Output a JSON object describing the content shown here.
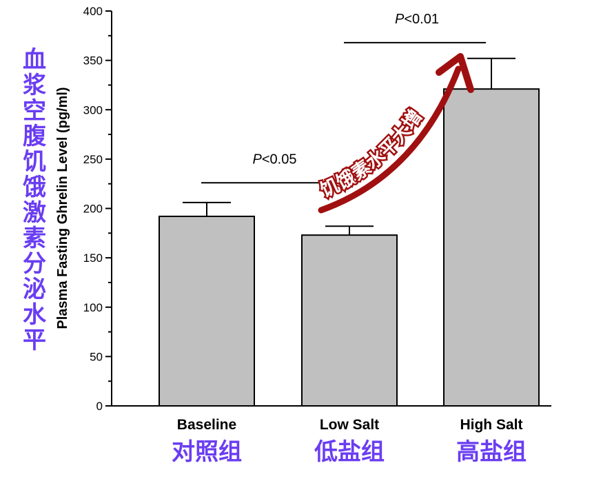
{
  "chart_data": {
    "type": "bar",
    "categories": [
      "Baseline",
      "Low Salt",
      "High Salt"
    ],
    "categories_cn": [
      "对照组",
      "低盐组",
      "高盐组"
    ],
    "values": [
      192,
      173,
      321
    ],
    "errors": [
      14,
      9,
      31
    ],
    "ylabel": "Plasma Fasting Ghrelin Level (pg/ml)",
    "ylabel_cn": "血浆空腹饥饿激素分泌水平",
    "ylim": [
      0,
      400
    ],
    "yticks": [
      "0",
      "50",
      "100",
      "150",
      "200",
      "250",
      "300",
      "350",
      "400"
    ],
    "grid": false,
    "bar_color": "#c0c0c0",
    "significance": [
      {
        "from": 0,
        "to": 1,
        "label_italic": "P",
        "label_rest": "<0.05",
        "level": 226
      },
      {
        "from": 1,
        "to": 2,
        "label_italic": "P",
        "label_rest": "<0.01",
        "level": 368
      }
    ],
    "annotation": {
      "text": "饥饿素水平大增",
      "color": "#a01010"
    }
  },
  "colors": {
    "accent_cn": "#6a3df2",
    "arrow": "#a01010"
  }
}
